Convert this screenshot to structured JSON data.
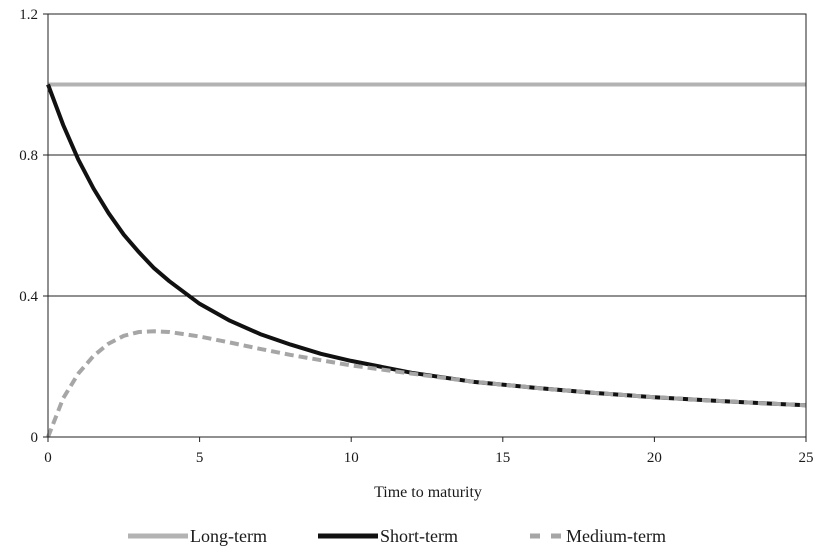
{
  "chart_data": {
    "type": "line",
    "title": "",
    "xlabel": "Time to maturity",
    "ylabel": "",
    "xlim": [
      0,
      25
    ],
    "ylim": [
      0,
      1.2
    ],
    "x_ticks": [
      "0",
      "5",
      "10",
      "15",
      "20",
      "25"
    ],
    "y_ticks": [
      "0",
      "0.4",
      "0.8",
      "1.2"
    ],
    "grid": "horizontal",
    "legend_position": "bottom",
    "x": [
      0,
      0.5,
      1,
      1.5,
      2,
      2.5,
      3,
      3.5,
      4,
      5,
      6,
      7,
      8,
      9,
      10,
      12,
      14,
      16,
      18,
      20,
      22,
      24,
      25
    ],
    "series": [
      {
        "name": "Long-term",
        "color": "#b3b3b3",
        "style": "solid",
        "values": [
          1,
          1,
          1,
          1,
          1,
          1,
          1,
          1,
          1,
          1,
          1,
          1,
          1,
          1,
          1,
          1,
          1,
          1,
          1,
          1,
          1,
          1,
          1
        ]
      },
      {
        "name": "Short-term",
        "color": "#111111",
        "style": "solid",
        "values": [
          1.0,
          0.885,
          0.787,
          0.705,
          0.635,
          0.574,
          0.524,
          0.479,
          0.442,
          0.378,
          0.33,
          0.292,
          0.262,
          0.236,
          0.216,
          0.182,
          0.157,
          0.14,
          0.125,
          0.113,
          0.103,
          0.094,
          0.09
        ]
      },
      {
        "name": "Medium-term",
        "color": "#a6a6a6",
        "style": "dashed",
        "values": [
          0.0,
          0.11,
          0.18,
          0.23,
          0.265,
          0.287,
          0.298,
          0.3,
          0.298,
          0.285,
          0.268,
          0.25,
          0.233,
          0.218,
          0.203,
          0.18,
          0.157,
          0.14,
          0.125,
          0.113,
          0.103,
          0.094,
          0.09
        ]
      }
    ]
  }
}
